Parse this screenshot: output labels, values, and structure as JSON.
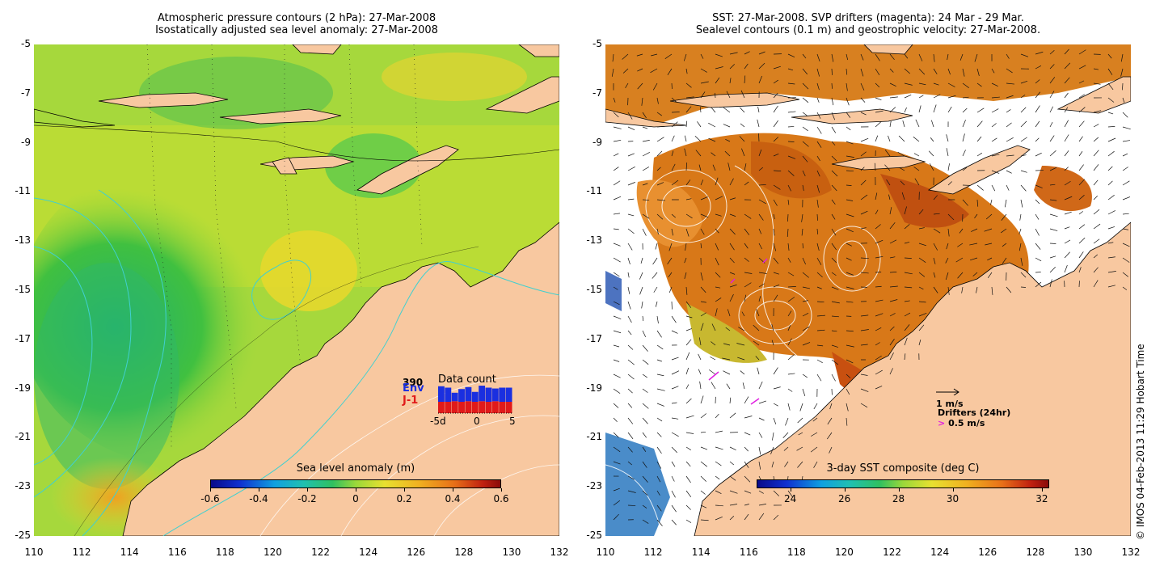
{
  "left_panel": {
    "title_line1": "Atmospheric pressure contours (2 hPa): 27-Mar-2008",
    "title_line2": "Isostatically adjusted sea level anomaly: 27-Mar-2008",
    "colorbar_label": "Sea level anomaly (m)",
    "colorbar_ticks": [
      "-0.6",
      "-0.4",
      "-0.2",
      "0",
      "0.2",
      "0.4",
      "0.6"
    ],
    "data_count": {
      "title": "Data count",
      "value": "390",
      "series": [
        "Env",
        "J-1"
      ],
      "series_colors": [
        "#1a2fe0",
        "#e01a1a"
      ],
      "xticks": [
        "-5d",
        "0",
        "5"
      ]
    }
  },
  "right_panel": {
    "title_line1": "SST: 27-Mar-2008. SVP drifters (magenta): 24 Mar - 29 Mar.",
    "title_line2": "Sealevel contours (0.1 m) and geostrophic velocity: 27-Mar-2008.",
    "colorbar_label": "3-day SST composite (deg C)",
    "colorbar_ticks": [
      "24",
      "26",
      "28",
      "30",
      "32"
    ],
    "velocity_legend": "1 m/s",
    "drifter_legend_title": "Drifters (24hr)",
    "drifter_legend_value": "0.5 m/s",
    "drifter_color": "#e020e0"
  },
  "axes": {
    "y_ticks": [
      "-5",
      "-7",
      "-9",
      "-11",
      "-13",
      "-15",
      "-17",
      "-19",
      "-21",
      "-23",
      "-25"
    ],
    "x_ticks": [
      "110",
      "112",
      "114",
      "116",
      "118",
      "120",
      "122",
      "124",
      "126",
      "128",
      "130",
      "132"
    ]
  },
  "colors": {
    "land": "#f8c8a0",
    "sea_anomaly_base": "#9ad83a",
    "sst_base": "#d87818"
  },
  "copyright": "© IMOS 04-Feb-2013 11:29 Hobart Time"
}
